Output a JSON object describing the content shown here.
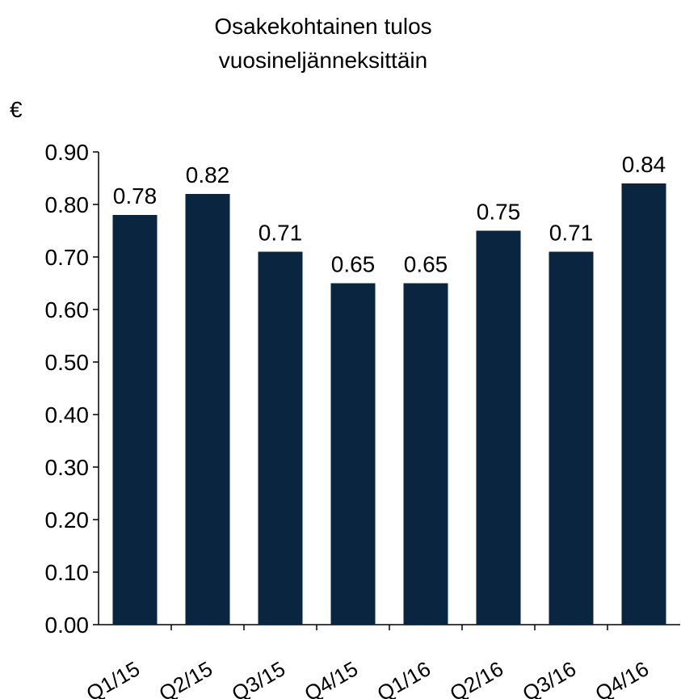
{
  "chart_data": {
    "type": "bar",
    "title": [
      "Osakekohtainen tulos",
      "vuosineljänneksittäin"
    ],
    "y_label": "€",
    "categories": [
      "Q1/15",
      "Q2/15",
      "Q3/15",
      "Q4/15",
      "Q1/16",
      "Q2/16",
      "Q3/16",
      "Q4/16"
    ],
    "values": [
      0.78,
      0.82,
      0.71,
      0.65,
      0.65,
      0.75,
      0.71,
      0.84
    ],
    "color": "#0a2540",
    "ylim": [
      0,
      0.9
    ],
    "yticks": [
      {
        "value": 0,
        "label": "0.00"
      },
      {
        "value": 0.1,
        "label": "0.10"
      },
      {
        "value": 0.2,
        "label": "0.20"
      },
      {
        "value": 0.3,
        "label": "0.30"
      },
      {
        "value": 0.4,
        "label": "0.40"
      },
      {
        "value": 0.5,
        "label": "0.50"
      },
      {
        "value": 0.6,
        "label": "0.60"
      },
      {
        "value": 0.7,
        "label": "0.70"
      },
      {
        "value": 0.8,
        "label": "0.80"
      },
      {
        "value": 0.9,
        "label": "0.90"
      }
    ],
    "grid": false
  }
}
